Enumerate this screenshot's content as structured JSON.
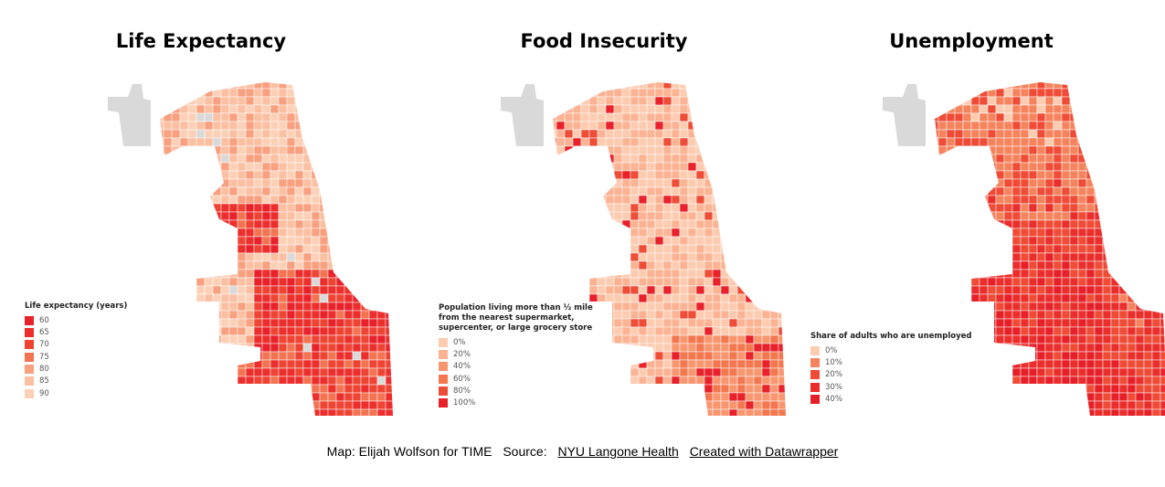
{
  "maps": [
    {
      "title": "Life Expectancy",
      "legend_title": "Life expectancy (years)",
      "legend": [
        {
          "label": "60",
          "color": "#e8212a"
        },
        {
          "label": "65",
          "color": "#ec2f2d"
        },
        {
          "label": "70",
          "color": "#ef4434"
        },
        {
          "label": "75",
          "color": "#f37352"
        },
        {
          "label": "80",
          "color": "#f8a07f"
        },
        {
          "label": "85",
          "color": "#fbbfa2"
        },
        {
          "label": "90",
          "color": "#fcd0b6"
        }
      ]
    },
    {
      "title": "Food Insecurity",
      "legend_title": "Population living more than ½ mile from the nearest supermarket, supercenter, or large grocery store",
      "legend": [
        {
          "label": "0%",
          "color": "#fccbb0"
        },
        {
          "label": "20%",
          "color": "#fbb393"
        },
        {
          "label": "40%",
          "color": "#f89670"
        },
        {
          "label": "60%",
          "color": "#f3774f"
        },
        {
          "label": "80%",
          "color": "#ee4e38"
        },
        {
          "label": "100%",
          "color": "#e8212a"
        }
      ]
    },
    {
      "title": "Unemployment",
      "legend_title": "Share of adults who are unemployed",
      "legend": [
        {
          "label": "0%",
          "color": "#fccbb0"
        },
        {
          "label": "10%",
          "color": "#f5845e"
        },
        {
          "label": "20%",
          "color": "#ef4b36"
        },
        {
          "label": "30%",
          "color": "#ea2e2c"
        },
        {
          "label": "40%",
          "color": "#e61f28"
        }
      ]
    }
  ],
  "no_data_color": "#d9d9d9",
  "footer": {
    "credit": "Map: Elijah Wolfson for TIME",
    "source_label": "Source:",
    "source_link": "NYU Langone Health",
    "created_link": "Created with Datawrapper"
  }
}
